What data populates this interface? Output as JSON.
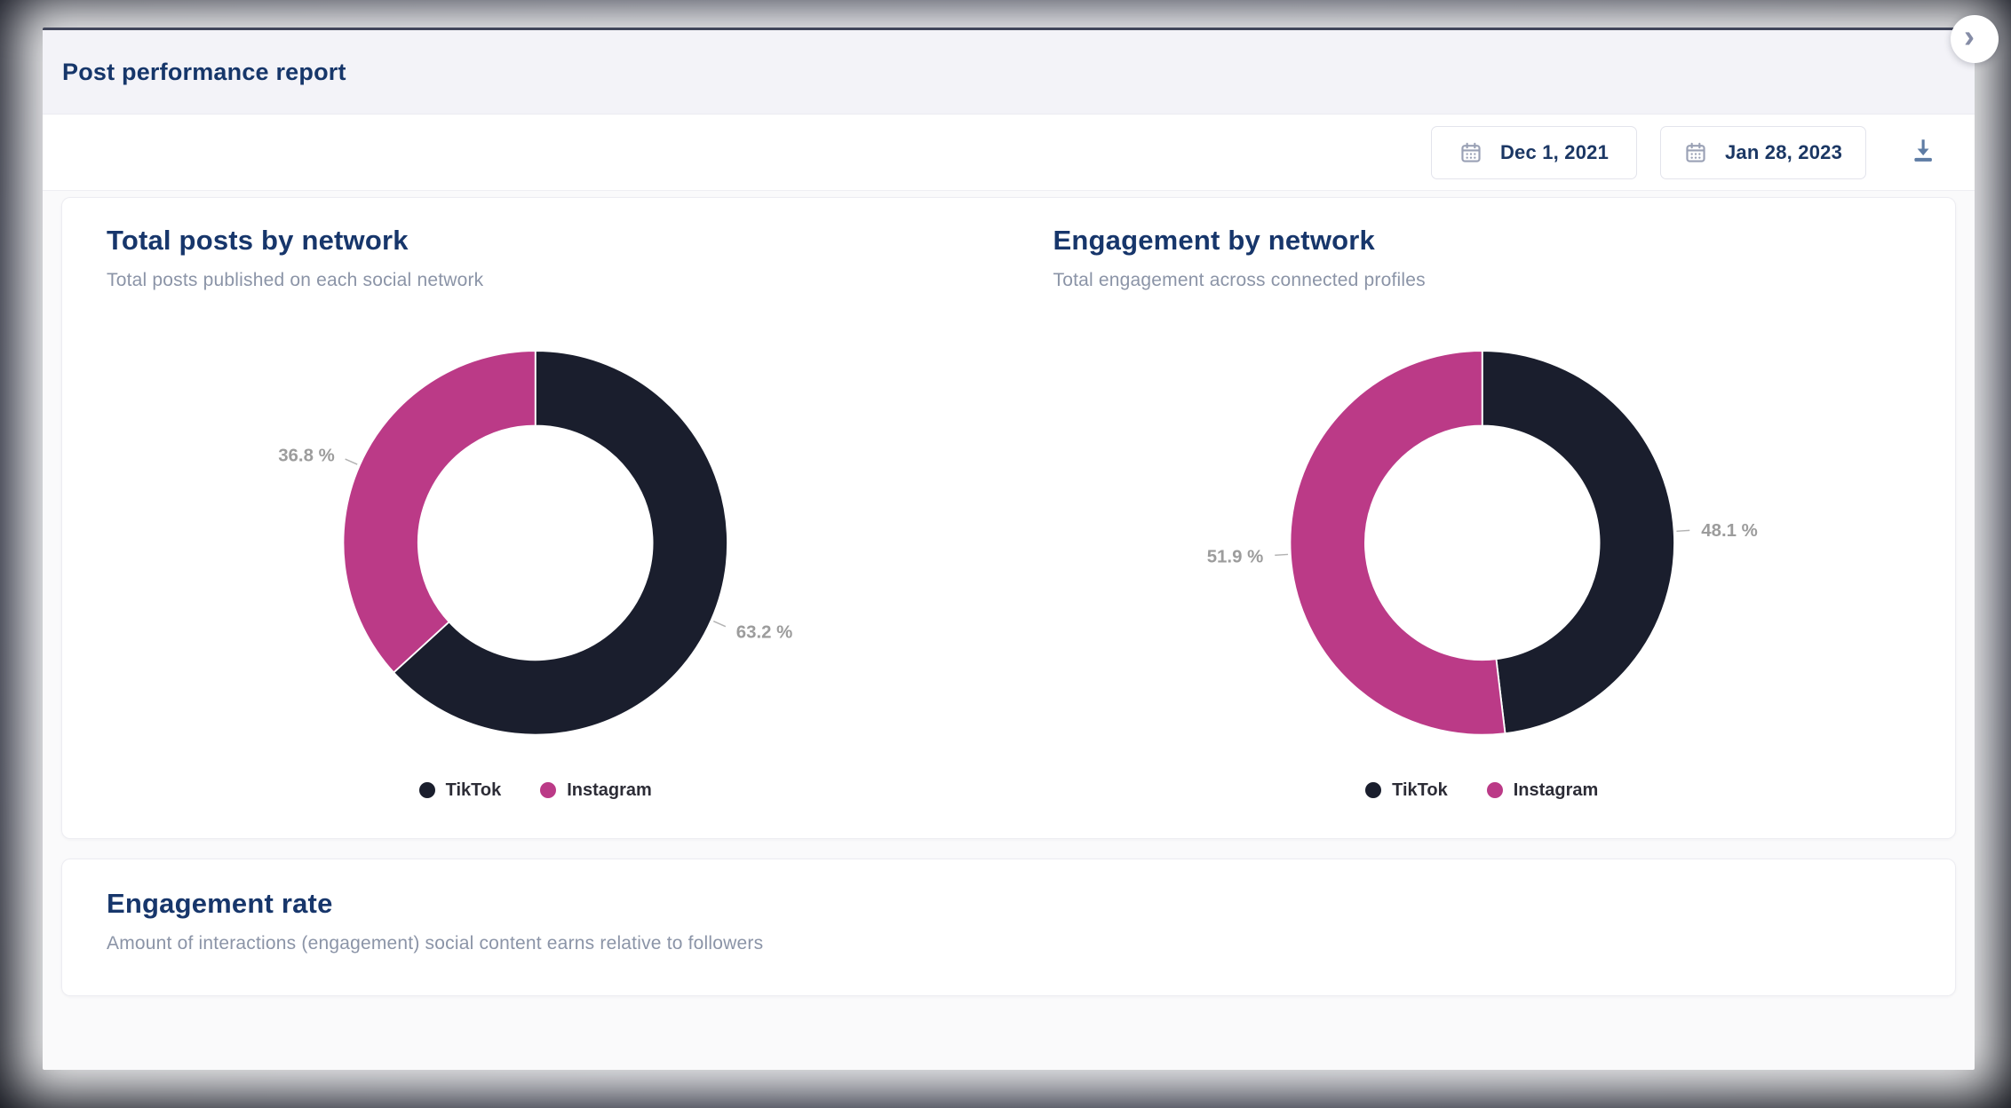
{
  "modal": {
    "title": "Post performance report",
    "corner_chevron": "›"
  },
  "toolbar": {
    "date_from": "Dec 1, 2021",
    "date_to": "Jan 28, 2023"
  },
  "colors": {
    "tiktok": "#1A1E2D",
    "instagram": "#BB3A87",
    "title_navy": "#17366B",
    "subtitle_gray": "#8B94A7",
    "label_gray": "#9C9C9C",
    "download_blue": "#5E7CA4",
    "header_bg": "#F3F3F8",
    "backdrop": "#262A3D"
  },
  "chart_data": [
    {
      "type": "pie",
      "variant": "donut",
      "title": "Total posts by network",
      "subtitle": "Total posts published on each social network",
      "categories": [
        "TikTok",
        "Instagram"
      ],
      "values": [
        63.2,
        36.8
      ],
      "unit": "%",
      "labels": [
        "63.2 %",
        "36.8 %"
      ],
      "colors": [
        "#1A1E2D",
        "#BB3A87"
      ],
      "start_angle_deg": 0,
      "direction": "clockwise",
      "legend_position": "bottom"
    },
    {
      "type": "pie",
      "variant": "donut",
      "title": "Engagement by network",
      "subtitle": "Total engagement across connected profiles",
      "categories": [
        "TikTok",
        "Instagram"
      ],
      "values": [
        48.1,
        51.9
      ],
      "unit": "%",
      "labels": [
        "48.1 %",
        "51.9 %"
      ],
      "colors": [
        "#1A1E2D",
        "#BB3A87"
      ],
      "start_angle_deg": 0,
      "direction": "clockwise",
      "legend_position": "bottom"
    }
  ],
  "sections": {
    "engagement_rate": {
      "title": "Engagement rate",
      "subtitle": "Amount of interactions (engagement) social content earns relative to followers"
    }
  }
}
